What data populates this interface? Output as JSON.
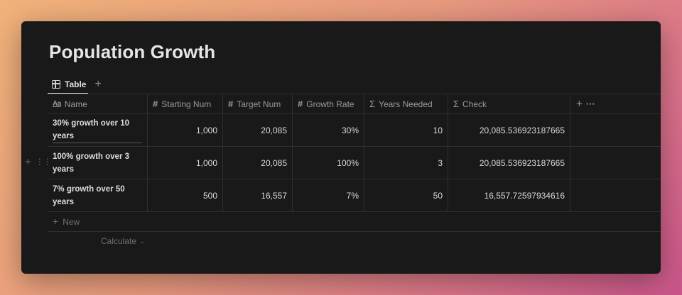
{
  "page": {
    "title": "Population Growth"
  },
  "views": {
    "tabs": [
      {
        "label": "Table",
        "icon": "table-icon"
      }
    ],
    "add_icon": "plus-icon"
  },
  "table": {
    "columns": [
      {
        "label": "Name",
        "icon": "text-property-icon"
      },
      {
        "label": "Starting Num",
        "icon": "number-property-icon"
      },
      {
        "label": "Target Num",
        "icon": "number-property-icon"
      },
      {
        "label": "Growth Rate",
        "icon": "number-property-icon"
      },
      {
        "label": "Years Needed",
        "icon": "formula-sigma-icon"
      },
      {
        "label": "Check",
        "icon": "formula-sigma-icon"
      }
    ],
    "rows": [
      {
        "name": "30% growth over 10 years",
        "starting": "1,000",
        "target": "20,085",
        "growth": "30%",
        "years": "10",
        "check": "20,085.536923187665"
      },
      {
        "name": "100% growth over 3 years",
        "starting": "1,000",
        "target": "20,085",
        "growth": "100%",
        "years": "3",
        "check": "20,085.536923187665"
      },
      {
        "name": "7% growth over 50 years",
        "starting": "500",
        "target": "16,557",
        "growth": "7%",
        "years": "50",
        "check": "16,557.72597934616"
      }
    ],
    "new_label": "New",
    "calculate_label": "Calculate"
  },
  "colors": {
    "background_window": "#191919",
    "text_primary": "#e6e6e6",
    "text_muted": "#9a9a9a",
    "border": "#2f2f2f"
  }
}
